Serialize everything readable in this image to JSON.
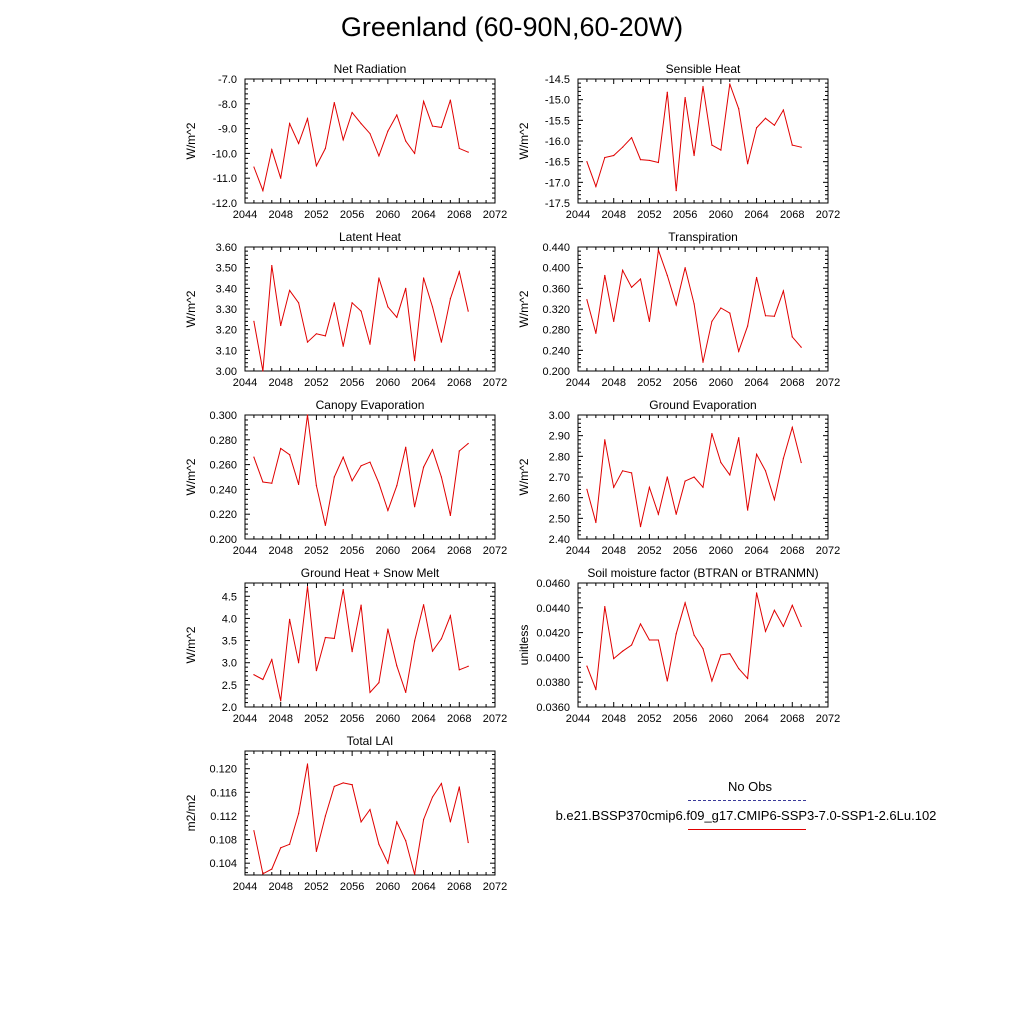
{
  "title": "Greenland (60-90N,60-20W)",
  "legend": {
    "obs_label": "No Obs",
    "obs_color": "#3a3a9a",
    "model_label": "b.e21.BSSP370cmip6.f09_g17.CMIP6-SSP3-7.0-SSP1-2.6Lu.102",
    "model_color": "#e00000"
  },
  "chart_data": [
    {
      "type": "line",
      "title": "Net Radiation",
      "ylabel": "W/m^2",
      "xlim": [
        2044,
        2072
      ],
      "xticks": [
        "2044",
        "2048",
        "2052",
        "2056",
        "2060",
        "2064",
        "2068",
        "2072"
      ],
      "ylim": [
        -12.0,
        -7.0
      ],
      "yticks": [
        "-12.0",
        "-11.0",
        "-10.0",
        "-9.0",
        "-8.0",
        "-7.0"
      ],
      "x": [
        2045,
        2046,
        2047,
        2048,
        2049,
        2050,
        2051,
        2052,
        2053,
        2054,
        2055,
        2056,
        2057,
        2058,
        2059,
        2060,
        2061,
        2062,
        2063,
        2064,
        2065,
        2066,
        2067,
        2068,
        2069
      ],
      "series": [
        {
          "color": "#e00000",
          "values": [
            -10.55,
            -11.5,
            -9.85,
            -11.0,
            -8.8,
            -9.6,
            -8.6,
            -10.5,
            -9.8,
            -7.95,
            -9.45,
            -8.35,
            -8.8,
            -9.2,
            -10.1,
            -9.1,
            -8.45,
            -9.5,
            -10.0,
            -7.9,
            -8.9,
            -8.95,
            -7.85,
            -9.8,
            -9.95
          ]
        }
      ]
    },
    {
      "type": "line",
      "title": "Sensible Heat",
      "ylabel": "W/m^2",
      "xlim": [
        2044,
        2072
      ],
      "xticks": [
        "2044",
        "2048",
        "2052",
        "2056",
        "2060",
        "2064",
        "2068",
        "2072"
      ],
      "ylim": [
        -17.5,
        -14.5
      ],
      "yticks": [
        "-17.5",
        "-17.0",
        "-16.5",
        "-16.0",
        "-15.5",
        "-15.0",
        "-14.5"
      ],
      "x": [
        2045,
        2046,
        2047,
        2048,
        2049,
        2050,
        2051,
        2052,
        2053,
        2054,
        2055,
        2056,
        2057,
        2058,
        2059,
        2060,
        2061,
        2062,
        2063,
        2064,
        2065,
        2066,
        2067,
        2068,
        2069
      ],
      "series": [
        {
          "color": "#e00000",
          "values": [
            -16.5,
            -17.1,
            -16.4,
            -16.35,
            -16.15,
            -15.92,
            -16.45,
            -16.47,
            -16.52,
            -14.82,
            -17.2,
            -14.95,
            -16.35,
            -14.68,
            -16.1,
            -16.22,
            -14.62,
            -15.22,
            -16.55,
            -15.68,
            -15.45,
            -15.62,
            -15.25,
            -16.1,
            -16.15
          ]
        }
      ]
    },
    {
      "type": "line",
      "title": "Latent Heat",
      "ylabel": "W/m^2",
      "xlim": [
        2044,
        2072
      ],
      "xticks": [
        "2044",
        "2048",
        "2052",
        "2056",
        "2060",
        "2064",
        "2068",
        "2072"
      ],
      "ylim": [
        3.0,
        3.6
      ],
      "yticks": [
        "3.00",
        "3.10",
        "3.20",
        "3.30",
        "3.40",
        "3.50",
        "3.60"
      ],
      "x": [
        2045,
        2046,
        2047,
        2048,
        2049,
        2050,
        2051,
        2052,
        2053,
        2054,
        2055,
        2056,
        2057,
        2058,
        2059,
        2060,
        2061,
        2062,
        2063,
        2064,
        2065,
        2066,
        2067,
        2068,
        2069
      ],
      "series": [
        {
          "color": "#e00000",
          "values": [
            3.24,
            3.0,
            3.51,
            3.22,
            3.39,
            3.33,
            3.14,
            3.18,
            3.17,
            3.33,
            3.12,
            3.33,
            3.29,
            3.13,
            3.45,
            3.31,
            3.26,
            3.4,
            3.05,
            3.45,
            3.31,
            3.14,
            3.35,
            3.48,
            3.29
          ]
        }
      ]
    },
    {
      "type": "line",
      "title": "Transpiration",
      "ylabel": "W/m^2",
      "xlim": [
        2044,
        2072
      ],
      "xticks": [
        "2044",
        "2048",
        "2052",
        "2056",
        "2060",
        "2064",
        "2068",
        "2072"
      ],
      "ylim": [
        0.2,
        0.44
      ],
      "yticks": [
        "0.200",
        "0.240",
        "0.280",
        "0.320",
        "0.360",
        "0.400",
        "0.440"
      ],
      "x": [
        2045,
        2046,
        2047,
        2048,
        2049,
        2050,
        2051,
        2052,
        2053,
        2054,
        2055,
        2056,
        2057,
        2058,
        2059,
        2060,
        2061,
        2062,
        2063,
        2064,
        2065,
        2066,
        2067,
        2068,
        2069
      ],
      "series": [
        {
          "color": "#e00000",
          "values": [
            0.338,
            0.273,
            0.385,
            0.296,
            0.395,
            0.362,
            0.378,
            0.296,
            0.434,
            0.385,
            0.328,
            0.4,
            0.33,
            0.217,
            0.296,
            0.322,
            0.312,
            0.238,
            0.287,
            0.381,
            0.307,
            0.306,
            0.355,
            0.266,
            0.246
          ]
        }
      ]
    },
    {
      "type": "line",
      "title": "Canopy Evaporation",
      "ylabel": "W/m^2",
      "xlim": [
        2044,
        2072
      ],
      "xticks": [
        "2044",
        "2048",
        "2052",
        "2056",
        "2060",
        "2064",
        "2068",
        "2072"
      ],
      "ylim": [
        0.2,
        0.3
      ],
      "yticks": [
        "0.200",
        "0.220",
        "0.240",
        "0.260",
        "0.280",
        "0.300"
      ],
      "x": [
        2045,
        2046,
        2047,
        2048,
        2049,
        2050,
        2051,
        2052,
        2053,
        2054,
        2055,
        2056,
        2057,
        2058,
        2059,
        2060,
        2061,
        2062,
        2063,
        2064,
        2065,
        2066,
        2067,
        2068,
        2069
      ],
      "series": [
        {
          "color": "#e00000",
          "values": [
            0.266,
            0.246,
            0.245,
            0.273,
            0.268,
            0.244,
            0.3,
            0.243,
            0.211,
            0.25,
            0.266,
            0.247,
            0.259,
            0.262,
            0.245,
            0.223,
            0.243,
            0.274,
            0.226,
            0.258,
            0.272,
            0.25,
            0.219,
            0.271,
            0.277
          ]
        }
      ]
    },
    {
      "type": "line",
      "title": "Ground Evaporation",
      "ylabel": "W/m^2",
      "xlim": [
        2044,
        2072
      ],
      "xticks": [
        "2044",
        "2048",
        "2052",
        "2056",
        "2060",
        "2064",
        "2068",
        "2072"
      ],
      "ylim": [
        2.4,
        3.0
      ],
      "yticks": [
        "2.40",
        "2.50",
        "2.60",
        "2.70",
        "2.80",
        "2.90",
        "3.00"
      ],
      "x": [
        2045,
        2046,
        2047,
        2048,
        2049,
        2050,
        2051,
        2052,
        2053,
        2054,
        2055,
        2056,
        2057,
        2058,
        2059,
        2060,
        2061,
        2062,
        2063,
        2064,
        2065,
        2066,
        2067,
        2068,
        2069
      ],
      "series": [
        {
          "color": "#e00000",
          "values": [
            2.64,
            2.48,
            2.88,
            2.65,
            2.73,
            2.72,
            2.46,
            2.65,
            2.52,
            2.7,
            2.52,
            2.68,
            2.7,
            2.65,
            2.91,
            2.77,
            2.71,
            2.89,
            2.54,
            2.81,
            2.73,
            2.59,
            2.79,
            2.94,
            2.77
          ]
        }
      ]
    },
    {
      "type": "line",
      "title": "Ground Heat + Snow Melt",
      "ylabel": "W/m^2",
      "xlim": [
        2044,
        2072
      ],
      "xticks": [
        "2044",
        "2048",
        "2052",
        "2056",
        "2060",
        "2064",
        "2068",
        "2072"
      ],
      "ylim": [
        2.0,
        4.8
      ],
      "yticks": [
        "2.0",
        "2.5",
        "3.0",
        "3.5",
        "4.0",
        "4.5"
      ],
      "x": [
        2045,
        2046,
        2047,
        2048,
        2049,
        2050,
        2051,
        2052,
        2053,
        2054,
        2055,
        2056,
        2057,
        2058,
        2059,
        2060,
        2061,
        2062,
        2063,
        2064,
        2065,
        2066,
        2067,
        2068,
        2069
      ],
      "series": [
        {
          "color": "#e00000",
          "values": [
            2.73,
            2.62,
            3.07,
            2.14,
            3.98,
            3.0,
            4.72,
            2.82,
            3.57,
            3.55,
            4.65,
            3.25,
            4.3,
            2.33,
            2.55,
            3.76,
            2.93,
            2.33,
            3.49,
            4.31,
            3.26,
            3.54,
            4.06,
            2.84,
            2.92
          ]
        }
      ]
    },
    {
      "type": "line",
      "title": "Soil moisture factor (BTRAN or BTRANMN)",
      "ylabel": "unitless",
      "xlim": [
        2044,
        2072
      ],
      "xticks": [
        "2044",
        "2048",
        "2052",
        "2056",
        "2060",
        "2064",
        "2068",
        "2072"
      ],
      "ylim": [
        0.036,
        0.046
      ],
      "yticks": [
        "0.0360",
        "0.0380",
        "0.0400",
        "0.0420",
        "0.0440",
        "0.0460"
      ],
      "x": [
        2045,
        2046,
        2047,
        2048,
        2049,
        2050,
        2051,
        2052,
        2053,
        2054,
        2055,
        2056,
        2057,
        2058,
        2059,
        2060,
        2061,
        2062,
        2063,
        2064,
        2065,
        2066,
        2067,
        2068,
        2069
      ],
      "series": [
        {
          "color": "#e00000",
          "values": [
            0.0393,
            0.0374,
            0.0441,
            0.0399,
            0.0405,
            0.041,
            0.0427,
            0.0414,
            0.0414,
            0.0381,
            0.0419,
            0.0444,
            0.0418,
            0.0407,
            0.0381,
            0.0402,
            0.0403,
            0.0391,
            0.0383,
            0.0452,
            0.0421,
            0.0438,
            0.0425,
            0.0442,
            0.0425
          ]
        }
      ]
    },
    {
      "type": "line",
      "title": "Total LAI",
      "ylabel": "m2/m2",
      "xlim": [
        2044,
        2072
      ],
      "xticks": [
        "2044",
        "2048",
        "2052",
        "2056",
        "2060",
        "2064",
        "2068",
        "2072"
      ],
      "ylim": [
        0.102,
        0.123
      ],
      "yticks": [
        "0.104",
        "0.108",
        "0.112",
        "0.116",
        "0.120"
      ],
      "x": [
        2045,
        2046,
        2047,
        2048,
        2049,
        2050,
        2051,
        2052,
        2053,
        2054,
        2055,
        2056,
        2057,
        2058,
        2059,
        2060,
        2061,
        2062,
        2063,
        2064,
        2065,
        2066,
        2067,
        2068,
        2069
      ],
      "series": [
        {
          "color": "#e00000",
          "values": [
            0.1095,
            0.1022,
            0.103,
            0.1066,
            0.1072,
            0.1124,
            0.1208,
            0.106,
            0.112,
            0.117,
            0.1176,
            0.1173,
            0.111,
            0.1131,
            0.1072,
            0.104,
            0.111,
            0.1078,
            0.1021,
            0.1114,
            0.1152,
            0.1175,
            0.111,
            0.1169,
            0.1075
          ]
        }
      ]
    }
  ]
}
